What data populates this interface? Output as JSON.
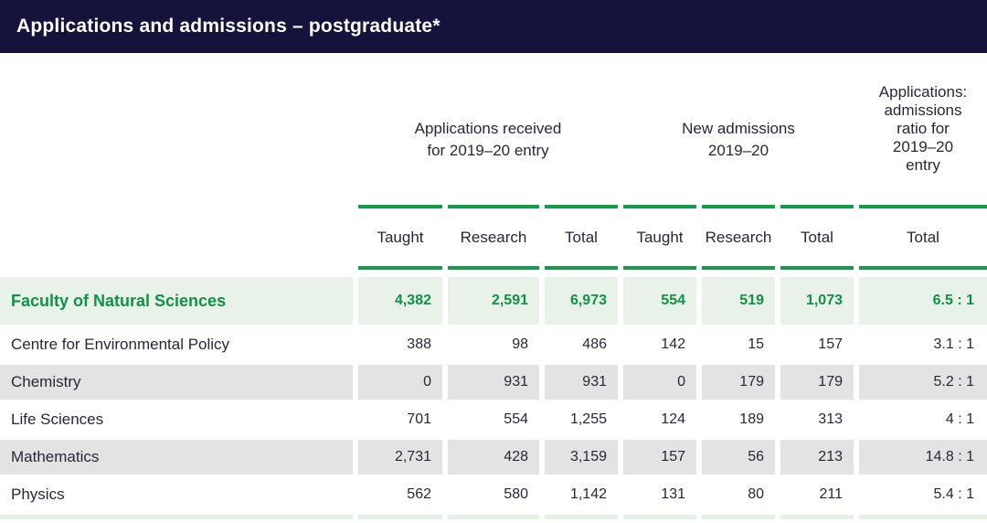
{
  "title": "Applications and admissions – postgraduate*",
  "table": {
    "group_headers": [
      "Applications received\nfor 2019–20 entry",
      "New admissions\n2019–20",
      "Applications:\nadmissions\nratio for\n2019–20\nentry"
    ],
    "subheaders": [
      "Taught",
      "Research",
      "Total",
      "Taught",
      "Research",
      "Total",
      "Total"
    ],
    "rows": [
      {
        "label": "Faculty of Natural Sciences",
        "highlight": true,
        "values": [
          "4,382",
          "2,591",
          "6,973",
          "554",
          "519",
          "1,073",
          "6.5 : 1"
        ]
      },
      {
        "label": "Centre for Environmental Policy",
        "highlight": false,
        "values": [
          "388",
          "98",
          "486",
          "142",
          "15",
          "157",
          "3.1 : 1"
        ]
      },
      {
        "label": "Chemistry",
        "highlight": false,
        "values": [
          "0",
          "931",
          "931",
          "0",
          "179",
          "179",
          "5.2 : 1"
        ]
      },
      {
        "label": "Life Sciences",
        "highlight": false,
        "values": [
          "701",
          "554",
          "1,255",
          "124",
          "189",
          "313",
          "4 : 1"
        ]
      },
      {
        "label": "Mathematics",
        "highlight": false,
        "values": [
          "2,731",
          "428",
          "3,159",
          "157",
          "56",
          "213",
          "14.8 : 1"
        ]
      },
      {
        "label": "Physics",
        "highlight": false,
        "values": [
          "562",
          "580",
          "1,142",
          "131",
          "80",
          "211",
          "5.4 : 1"
        ]
      }
    ],
    "colors": {
      "header_bar": "#15123c",
      "rule_green": "#189a4c",
      "highlight_text_green": "#0e9246",
      "highlight_row_bg": "#e9f2e9",
      "alt_row_bg": "#e3e3e3",
      "body_text": "#282739"
    }
  }
}
